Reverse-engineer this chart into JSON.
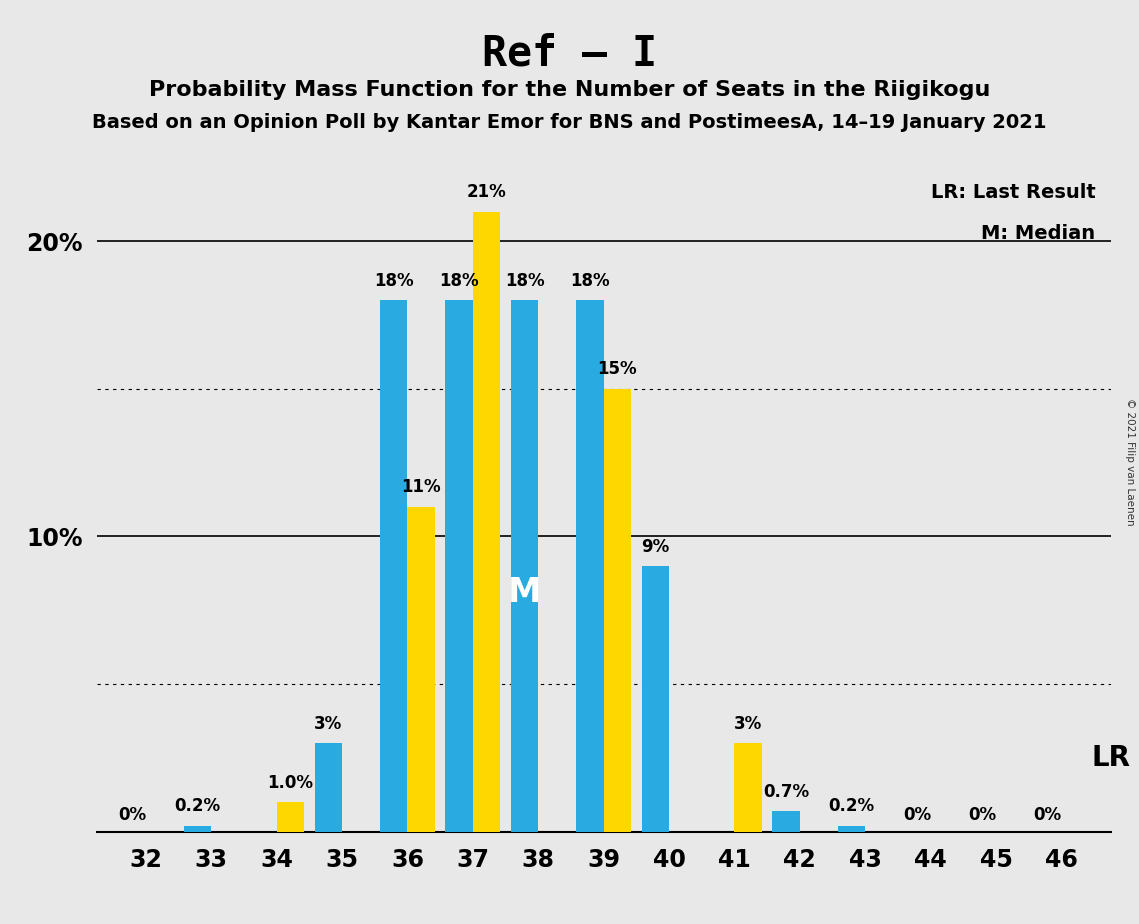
{
  "title": "Ref – I",
  "subtitle1": "Probability Mass Function for the Number of Seats in the Riigikogu",
  "subtitle2": "Based on an Opinion Poll by Kantar Emor for BNS and PostimeesA, 14–19 January 2021",
  "copyright": "© 2021 Filip van Laenen",
  "seats": [
    32,
    33,
    34,
    35,
    36,
    37,
    38,
    39,
    40,
    41,
    42,
    43,
    44,
    45,
    46
  ],
  "blue_values": [
    0.0,
    0.2,
    0.0,
    3.0,
    18.0,
    18.0,
    18.0,
    18.0,
    9.0,
    0.0,
    0.7,
    0.2,
    0.0,
    0.0,
    0.0
  ],
  "yellow_values": [
    0.0,
    0.0,
    1.0,
    0.0,
    11.0,
    21.0,
    0.0,
    15.0,
    0.0,
    3.0,
    0.0,
    0.0,
    0.0,
    0.0,
    0.0
  ],
  "blue_labels": [
    "0%",
    "0.2%",
    "",
    "3%",
    "18%",
    "18%",
    "18%",
    "18%",
    "9%",
    "",
    "0.7%",
    "0.2%",
    "0%",
    "0%",
    "0%"
  ],
  "yellow_labels": [
    "",
    "",
    "1.0%",
    "",
    "11%",
    "21%",
    "",
    "15%",
    "",
    "3%",
    "",
    "",
    "",
    "",
    ""
  ],
  "show_zero_blue": [
    true,
    false,
    false,
    false,
    false,
    false,
    false,
    false,
    false,
    false,
    false,
    false,
    true,
    true,
    true
  ],
  "show_zero_yellow": [
    false,
    false,
    false,
    false,
    false,
    false,
    false,
    false,
    false,
    false,
    false,
    false,
    false,
    false,
    false
  ],
  "blue_color": "#29ABE2",
  "yellow_color": "#FFD700",
  "background_color": "#E8E8E8",
  "ylim": [
    0,
    23
  ],
  "major_gridlines": [
    10.0,
    20.0
  ],
  "dotted_gridlines": [
    5.0,
    15.0
  ],
  "median_seat": 38,
  "median_label": "M",
  "lr_seat": 46,
  "lr_label": "LR",
  "legend_lr": "LR: Last Result",
  "legend_m": "M: Median",
  "bar_width": 0.42,
  "ytick_positions": [
    10,
    20
  ],
  "ytick_labels": [
    "10%",
    "20%"
  ]
}
